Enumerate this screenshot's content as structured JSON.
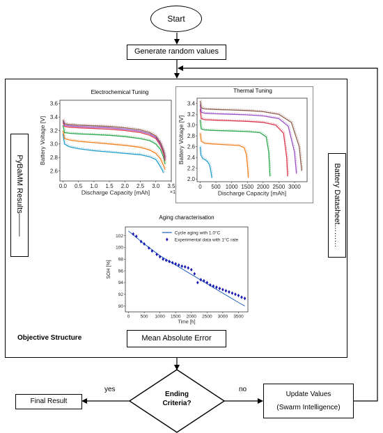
{
  "flow": {
    "start": "Start",
    "generate": "Generate random values",
    "objective_structure": "Objective Structure",
    "mae": "Mean Absolute Error",
    "pybamm": "PyBaMM Results———",
    "datasheet": "Battery Datasheet………",
    "ending_line1": "Ending",
    "ending_line2": "Criteria?",
    "yes": "yes",
    "no": "no",
    "final": "Final Result",
    "update_line1": "Update Values",
    "update_line2": "(Swarm Intelligence)"
  },
  "chart_data": [
    {
      "type": "line",
      "title": "Electrochemical Tuning",
      "xlabel": "Discharge Capacity [mAh]",
      "ylabel": "Battery Voltage [V]",
      "x_multiplier_label": "×10³",
      "xlim": [
        -0.1,
        3.5
      ],
      "ylim": [
        2.45,
        3.65
      ],
      "xticks": [
        "0.0",
        "0.5",
        "1.0",
        "1.5",
        "2.0",
        "2.5",
        "3.0",
        "3.5"
      ],
      "yticks": [
        "2.6",
        "2.8",
        "3.0",
        "3.2",
        "3.4",
        "3.6"
      ],
      "series": [
        {
          "color": "#1f9bc9",
          "x": [
            0.0,
            0.05,
            0.2,
            0.5,
            1.0,
            1.5,
            2.0,
            2.5,
            2.8,
            3.0,
            3.1,
            3.2,
            3.25
          ],
          "y": [
            3.15,
            3.0,
            2.96,
            2.93,
            2.9,
            2.88,
            2.86,
            2.84,
            2.81,
            2.77,
            2.7,
            2.62,
            2.57
          ]
        },
        {
          "color": "#f07f1f",
          "x": [
            0.0,
            0.05,
            0.2,
            0.5,
            1.0,
            1.5,
            2.0,
            2.5,
            2.8,
            3.0,
            3.15,
            3.25,
            3.3
          ],
          "y": [
            3.2,
            3.08,
            3.06,
            3.04,
            3.02,
            3.0,
            2.98,
            2.95,
            2.91,
            2.86,
            2.78,
            2.68,
            2.62
          ]
        },
        {
          "color": "#2aa64a",
          "x": [
            0.0,
            0.05,
            0.2,
            0.5,
            1.0,
            1.5,
            2.0,
            2.5,
            2.8,
            3.0,
            3.15,
            3.25,
            3.3
          ],
          "y": [
            3.28,
            3.17,
            3.16,
            3.15,
            3.14,
            3.13,
            3.11,
            3.08,
            3.05,
            3.0,
            2.92,
            2.8,
            2.7
          ]
        },
        {
          "color": "#d8334a",
          "x": [
            0.0,
            0.05,
            0.2,
            0.5,
            1.0,
            1.5,
            2.0,
            2.5,
            2.8,
            3.0,
            3.15,
            3.25,
            3.3
          ],
          "y": [
            3.32,
            3.26,
            3.25,
            3.24,
            3.23,
            3.22,
            3.2,
            3.17,
            3.13,
            3.08,
            2.98,
            2.85,
            2.75
          ]
        },
        {
          "color": "#9a4fc4",
          "x": [
            0.0,
            0.05,
            0.2,
            0.5,
            1.0,
            1.5,
            2.0,
            2.5,
            2.8,
            3.0,
            3.15,
            3.25,
            3.3
          ],
          "y": [
            3.34,
            3.28,
            3.27,
            3.26,
            3.25,
            3.24,
            3.22,
            3.19,
            3.15,
            3.1,
            3.0,
            2.88,
            2.78
          ]
        },
        {
          "color": "#8c5a4a",
          "x": [
            0.0,
            0.05,
            0.2,
            0.5,
            1.0,
            1.5,
            2.0,
            2.5,
            2.8,
            3.0,
            3.15,
            3.25,
            3.3
          ],
          "y": [
            3.36,
            3.3,
            3.29,
            3.28,
            3.27,
            3.26,
            3.24,
            3.21,
            3.17,
            3.12,
            3.02,
            2.9,
            2.8
          ]
        }
      ]
    },
    {
      "type": "line",
      "title": "Thermal Tuning",
      "xlabel": "Discharge Capacity [mAh]",
      "ylabel": "Battery Voltage [V]",
      "xlim": [
        -100,
        3400
      ],
      "ylim": [
        1.95,
        3.5
      ],
      "xticks": [
        "0",
        "500",
        "1000",
        "1500",
        "2000",
        "2500",
        "3000"
      ],
      "yticks": [
        "2.0",
        "2.2",
        "2.4",
        "2.6",
        "2.8",
        "3.0",
        "3.2",
        "3.4"
      ],
      "series": [
        {
          "color": "#1f9bc9",
          "x": [
            0,
            20,
            80,
            150,
            220,
            280,
            320,
            350,
            370
          ],
          "y": [
            2.6,
            2.45,
            2.38,
            2.36,
            2.33,
            2.28,
            2.2,
            2.1,
            2.02
          ]
        },
        {
          "color": "#f07f1f",
          "x": [
            0,
            30,
            150,
            400,
            700,
            1000,
            1250,
            1400,
            1470,
            1510,
            1530
          ],
          "y": [
            2.85,
            2.7,
            2.66,
            2.65,
            2.64,
            2.63,
            2.62,
            2.58,
            2.45,
            2.2,
            2.02
          ]
        },
        {
          "color": "#2aa64a",
          "x": [
            0,
            30,
            150,
            500,
            1000,
            1500,
            1900,
            2100,
            2180,
            2220
          ],
          "y": [
            3.1,
            2.93,
            2.91,
            2.9,
            2.89,
            2.88,
            2.86,
            2.78,
            2.5,
            2.05
          ]
        },
        {
          "color": "#d8334a",
          "x": [
            0,
            30,
            150,
            500,
            1000,
            1500,
            2000,
            2400,
            2650,
            2750,
            2780
          ],
          "y": [
            3.3,
            3.12,
            3.1,
            3.09,
            3.08,
            3.07,
            3.05,
            3.0,
            2.85,
            2.4,
            2.05
          ]
        },
        {
          "color": "#9a4fc4",
          "x": [
            0,
            30,
            150,
            500,
            1000,
            1500,
            2000,
            2500,
            2800,
            3000,
            3060
          ],
          "y": [
            3.38,
            3.24,
            3.22,
            3.21,
            3.2,
            3.19,
            3.17,
            3.12,
            2.98,
            2.5,
            2.1
          ]
        },
        {
          "color": "#8c5a4a",
          "x": [
            0,
            30,
            150,
            500,
            1000,
            1500,
            2000,
            2500,
            2900,
            3150,
            3230
          ],
          "y": [
            3.45,
            3.32,
            3.3,
            3.29,
            3.28,
            3.27,
            3.25,
            3.2,
            3.05,
            2.6,
            2.15
          ]
        }
      ]
    },
    {
      "type": "scatter",
      "title": "Aging characterisation",
      "xlabel": "Time [h]",
      "ylabel": "SOH [%]",
      "xlim": [
        -100,
        3800
      ],
      "ylim": [
        89,
        103.5
      ],
      "xticks": [
        "0",
        "500",
        "1000",
        "1500",
        "2000",
        "2500",
        "3000",
        "3500"
      ],
      "yticks": [
        "90",
        "92",
        "94",
        "96",
        "98",
        "100",
        "102"
      ],
      "legend": "top-right",
      "series": [
        {
          "name": "Cycle aging with 1.0°C",
          "kind": "line",
          "color": "#1f5fbf",
          "x": [
            0,
            250,
            500,
            750,
            1000,
            1250,
            1500,
            1750,
            2000,
            2250,
            2500,
            2750,
            3000,
            3250,
            3500,
            3700
          ],
          "y": [
            102.8,
            101.7,
            100.6,
            99.6,
            98.6,
            97.8,
            97.0,
            96.2,
            95.4,
            94.6,
            93.8,
            93.0,
            92.2,
            91.4,
            90.6,
            90.0
          ]
        },
        {
          "name": "Experimental data with 1°C rate",
          "kind": "points",
          "color": "#1a1ab0",
          "x": [
            150,
            250,
            400,
            500,
            650,
            750,
            900,
            1000,
            1100,
            1200,
            1300,
            1400,
            1500,
            1600,
            1700,
            1800,
            1900,
            2000,
            2100,
            2200,
            2300,
            2400,
            2500,
            2600,
            2700,
            2800,
            2900,
            3000,
            3100,
            3200,
            3300,
            3400,
            3500,
            3600,
            3700
          ],
          "y": [
            102.3,
            101.9,
            101.0,
            100.6,
            99.9,
            99.4,
            98.8,
            98.4,
            98.0,
            97.8,
            97.6,
            97.4,
            97.2,
            97.0,
            96.8,
            96.7,
            96.5,
            96.2,
            95.5,
            94.0,
            94.5,
            94.3,
            94.0,
            93.6,
            93.4,
            93.2,
            93.0,
            92.8,
            92.6,
            92.4,
            92.2,
            92.0,
            91.8,
            91.5,
            91.3
          ]
        }
      ]
    }
  ]
}
